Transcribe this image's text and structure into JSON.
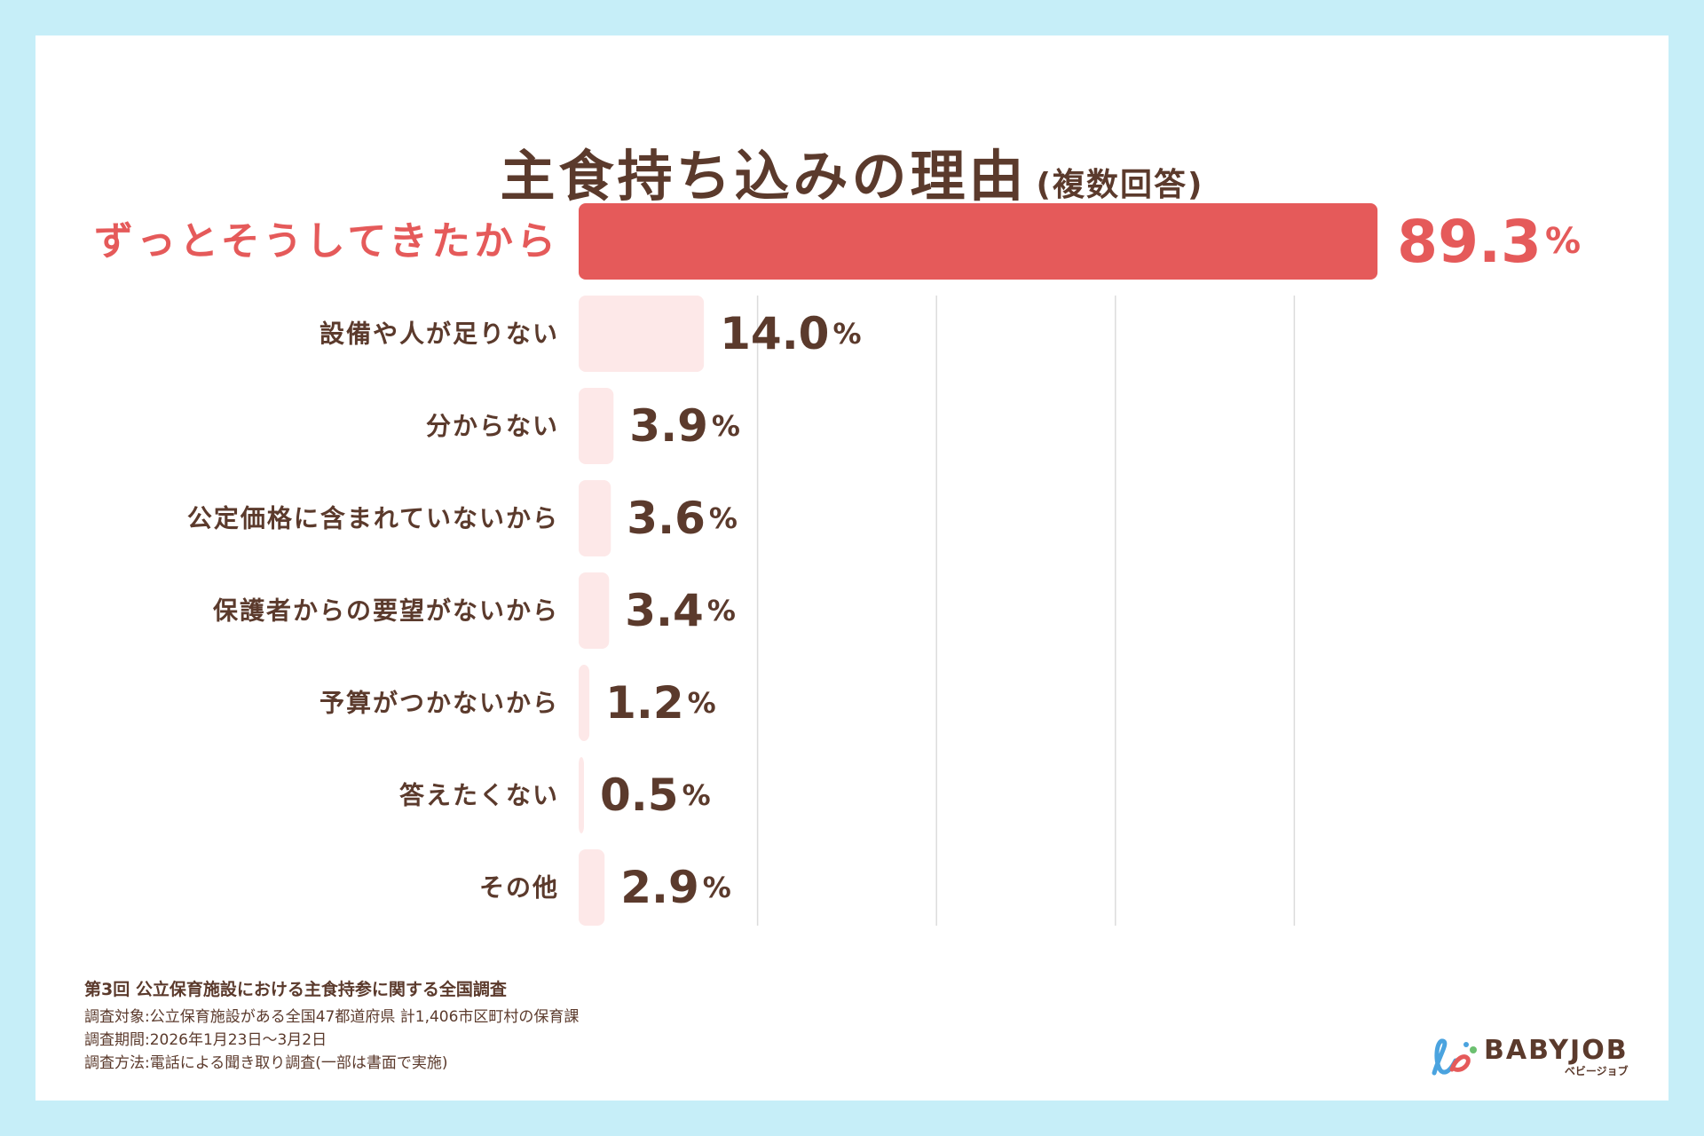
{
  "title": "主食持ち込みの理由",
  "subtitle": "(複数回答)",
  "chart_data": {
    "type": "bar",
    "orientation": "horizontal",
    "categories": [
      "ずっとそうしてきたから",
      "設備や人が足りない",
      "分からない",
      "公定価格に含まれていないから",
      "保護者からの要望がないから",
      "予算がつかないから",
      "答えたくない",
      "その他"
    ],
    "values": [
      89.3,
      14.0,
      3.9,
      3.6,
      3.4,
      1.2,
      0.5,
      2.9
    ],
    "value_labels": [
      "89.3",
      "14.0",
      "3.9",
      "3.6",
      "3.4",
      "1.2",
      "0.5",
      "2.9"
    ],
    "unit": "%",
    "xlim": [
      0,
      100
    ],
    "grid": true,
    "highlight_index": 0,
    "colors": {
      "highlight_bar": "#e55a5a",
      "bar": "#fde8e8",
      "highlight_text": "#e55a5a",
      "text": "#5b3a2c",
      "grid": "#dcdcdc"
    }
  },
  "footer": {
    "title": "第3回 公立保育施設における主食持参に関する全国調査",
    "lines": [
      "調査対象:公立保育施設がある全国47都道府県  計1,406市区町村の保育課",
      "調査期間:2026年1月23日〜3月2日",
      "調査方法:電話による聞き取り調査(一部は書面で実施)"
    ]
  },
  "logo": {
    "brand": "BABYJOB",
    "kana": "ベビージョブ",
    "colors": {
      "red": "#e55a5a",
      "blue": "#4aa3df",
      "green": "#6cc070",
      "text": "#5b3a2c"
    }
  }
}
